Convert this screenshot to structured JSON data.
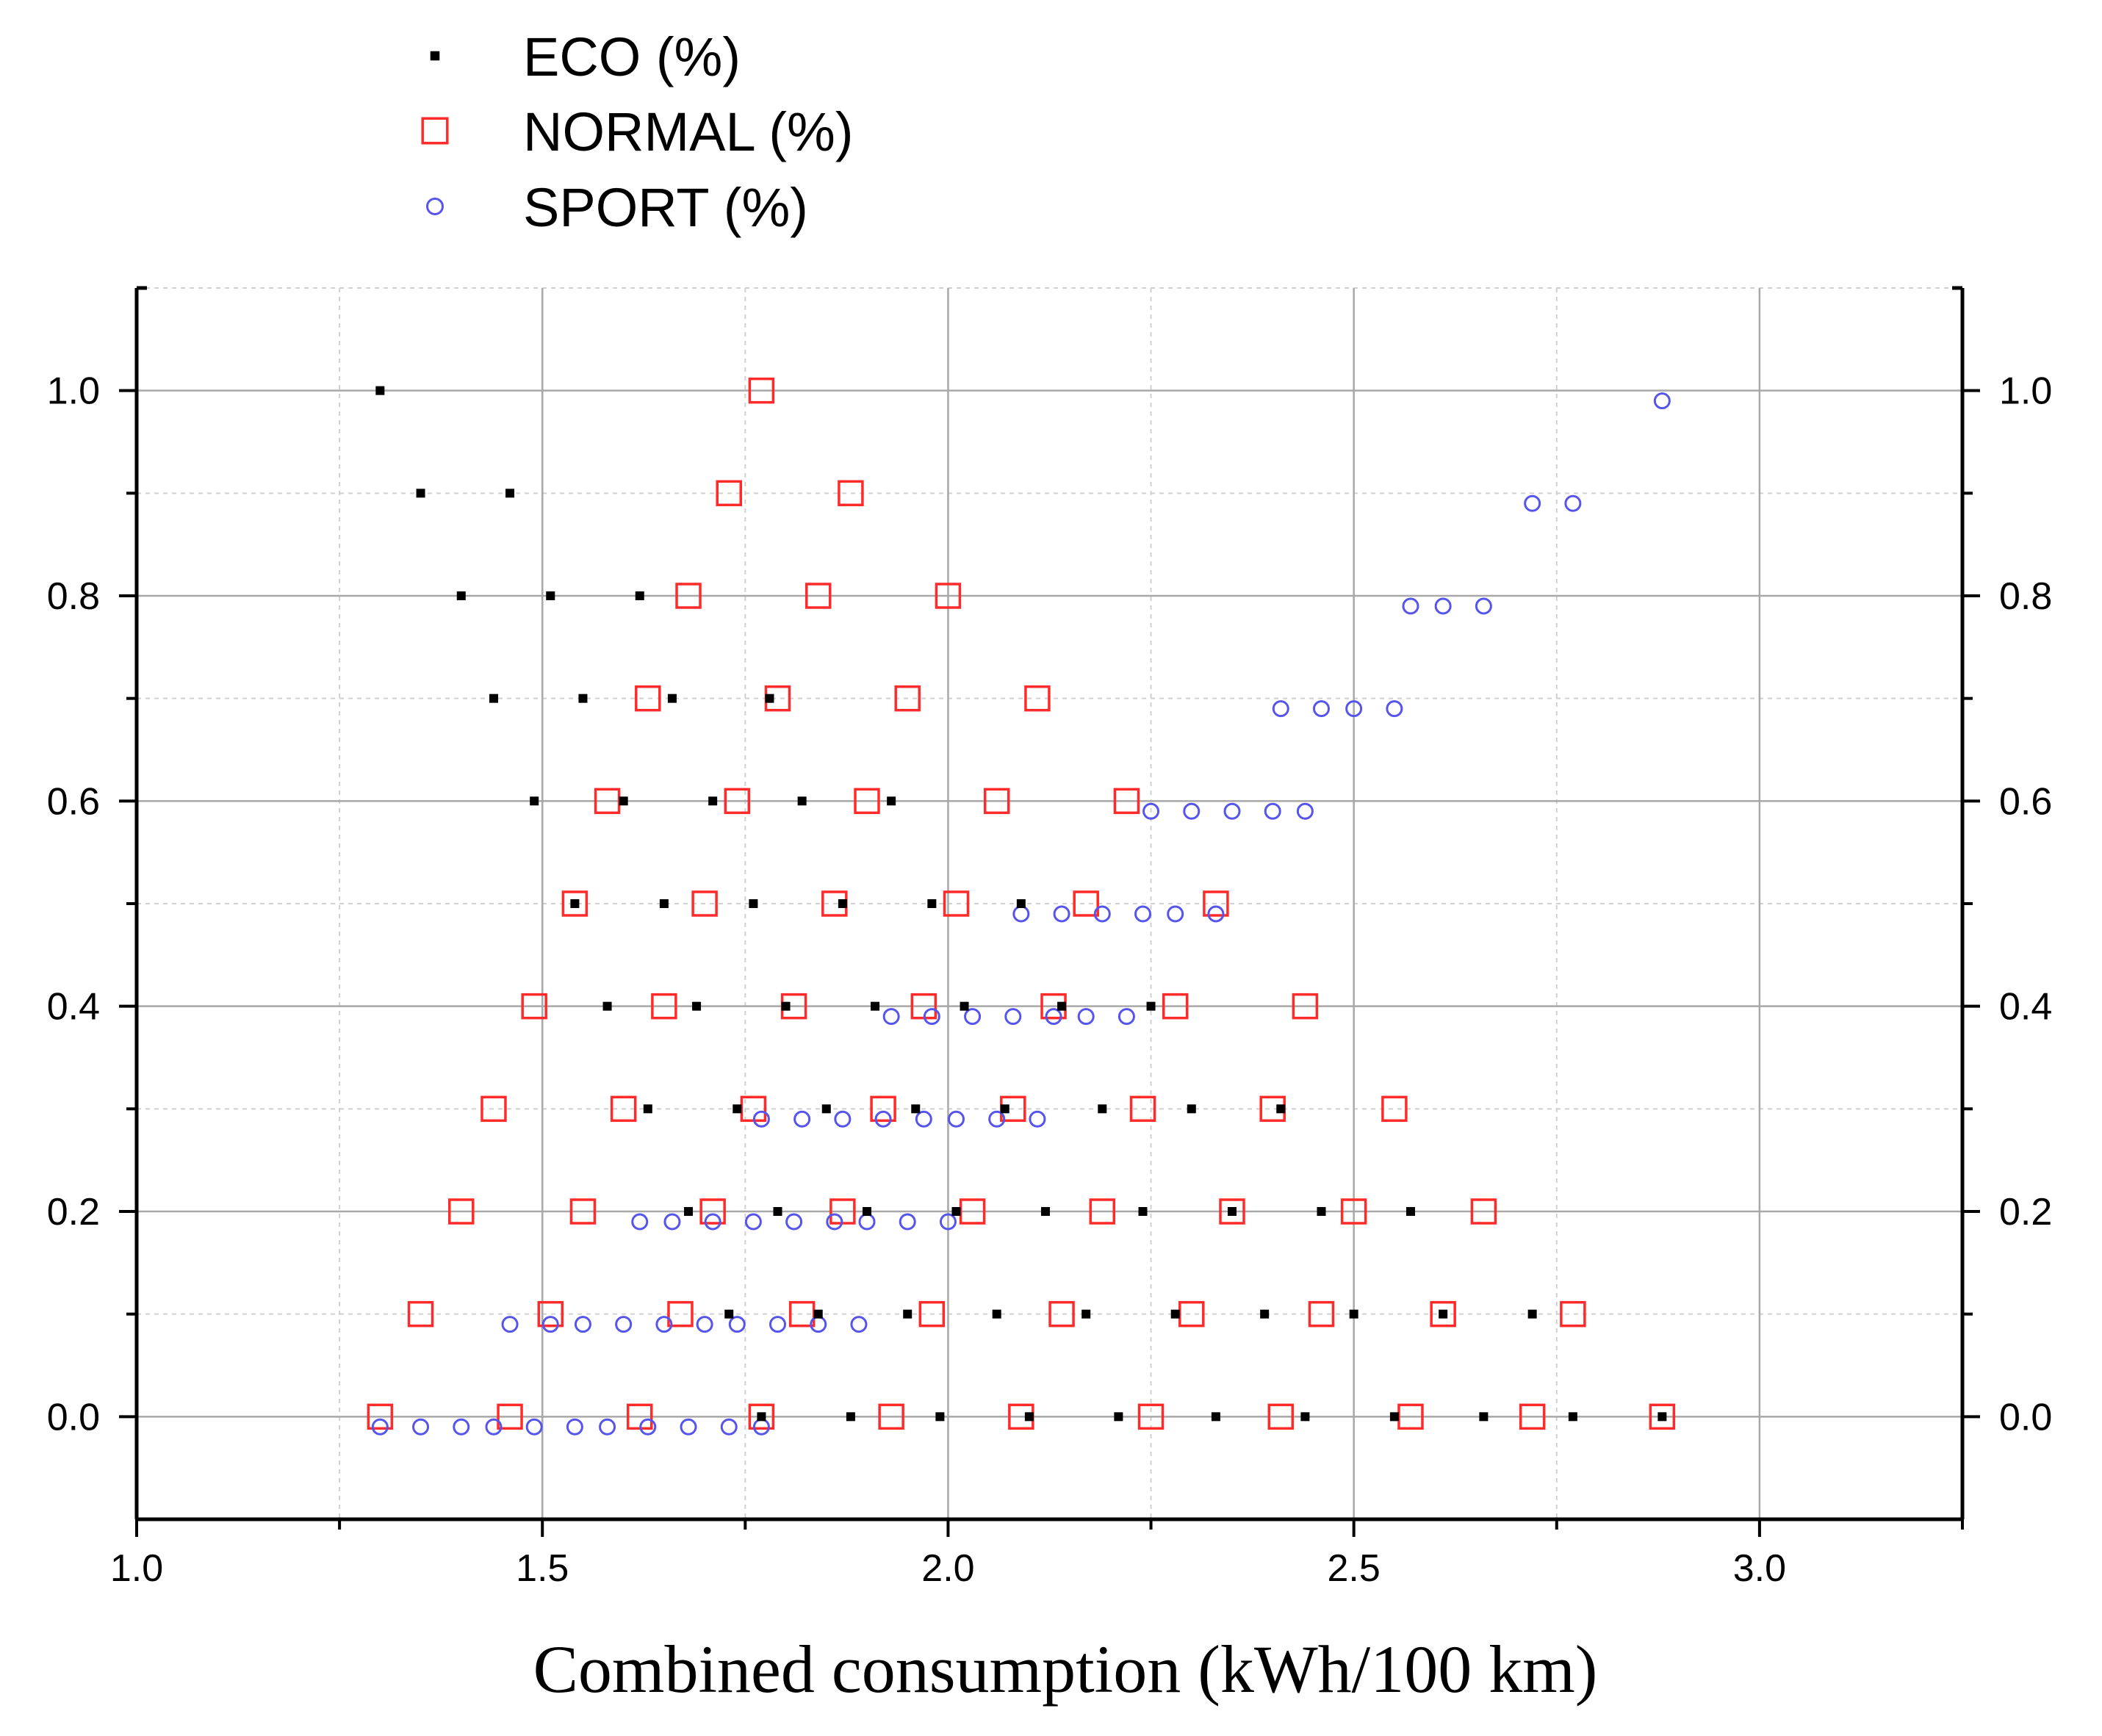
{
  "chart_data": {
    "type": "scatter",
    "title": "",
    "xlabel": "Combined consumption (kWh/100 km)",
    "ylabel": "",
    "xlim": [
      1.0,
      3.25
    ],
    "ylim": [
      -0.1,
      1.1
    ],
    "x_ticks": [
      "1.0",
      "1.5",
      "2.0",
      "2.5",
      "3.0"
    ],
    "y_ticks": [
      "0.0",
      "0.2",
      "0.4",
      "0.6",
      "0.8",
      "1.0"
    ],
    "y_ticks_right": [
      "0.0",
      "0.2",
      "0.4",
      "0.6",
      "0.8",
      "1.0"
    ],
    "grid": true,
    "legend_position": "top-left, above plot",
    "series": [
      {
        "name": "ECO (%)",
        "marker": "filled-square",
        "color": "#000000",
        "points": [
          [
            1.3,
            1.0
          ],
          [
            1.35,
            0.9
          ],
          [
            1.46,
            0.9
          ],
          [
            1.4,
            0.8
          ],
          [
            1.51,
            0.8
          ],
          [
            1.62,
            0.8
          ],
          [
            1.44,
            0.7
          ],
          [
            1.55,
            0.7
          ],
          [
            1.66,
            0.7
          ],
          [
            1.78,
            0.7
          ],
          [
            1.49,
            0.6
          ],
          [
            1.6,
            0.6
          ],
          [
            1.71,
            0.6
          ],
          [
            1.82,
            0.6
          ],
          [
            1.93,
            0.6
          ],
          [
            1.54,
            0.5
          ],
          [
            1.65,
            0.5
          ],
          [
            1.76,
            0.5
          ],
          [
            1.87,
            0.5
          ],
          [
            1.98,
            0.5
          ],
          [
            2.09,
            0.5
          ],
          [
            1.58,
            0.4
          ],
          [
            1.69,
            0.4
          ],
          [
            1.8,
            0.4
          ],
          [
            1.91,
            0.4
          ],
          [
            2.02,
            0.4
          ],
          [
            2.14,
            0.4
          ],
          [
            2.25,
            0.4
          ],
          [
            1.63,
            0.3
          ],
          [
            1.74,
            0.3
          ],
          [
            1.85,
            0.3
          ],
          [
            1.96,
            0.3
          ],
          [
            2.07,
            0.3
          ],
          [
            2.19,
            0.3
          ],
          [
            2.3,
            0.3
          ],
          [
            2.41,
            0.3
          ],
          [
            1.68,
            0.2
          ],
          [
            1.79,
            0.2
          ],
          [
            1.9,
            0.2
          ],
          [
            2.01,
            0.2
          ],
          [
            2.12,
            0.2
          ],
          [
            2.24,
            0.2
          ],
          [
            2.35,
            0.2
          ],
          [
            2.46,
            0.2
          ],
          [
            2.57,
            0.2
          ],
          [
            1.73,
            0.1
          ],
          [
            1.84,
            0.1
          ],
          [
            1.95,
            0.1
          ],
          [
            2.06,
            0.1
          ],
          [
            2.17,
            0.1
          ],
          [
            2.28,
            0.1
          ],
          [
            2.39,
            0.1
          ],
          [
            2.5,
            0.1
          ],
          [
            2.61,
            0.1
          ],
          [
            2.72,
            0.1
          ],
          [
            1.77,
            0.0
          ],
          [
            1.88,
            0.0
          ],
          [
            1.99,
            0.0
          ],
          [
            2.1,
            0.0
          ],
          [
            2.21,
            0.0
          ],
          [
            2.33,
            0.0
          ],
          [
            2.44,
            0.0
          ],
          [
            2.55,
            0.0
          ],
          [
            2.66,
            0.0
          ],
          [
            2.77,
            0.0
          ],
          [
            2.88,
            0.0
          ]
        ]
      },
      {
        "name": "NORMAL (%)",
        "marker": "open-square",
        "color": "#ff2a2a",
        "points": [
          [
            1.77,
            1.0
          ],
          [
            1.73,
            0.9
          ],
          [
            1.88,
            0.9
          ],
          [
            1.68,
            0.8
          ],
          [
            1.84,
            0.8
          ],
          [
            2.0,
            0.8
          ],
          [
            1.63,
            0.7
          ],
          [
            1.79,
            0.7
          ],
          [
            1.95,
            0.7
          ],
          [
            2.11,
            0.7
          ],
          [
            1.58,
            0.6
          ],
          [
            1.74,
            0.6
          ],
          [
            1.9,
            0.6
          ],
          [
            2.06,
            0.6
          ],
          [
            2.22,
            0.6
          ],
          [
            1.54,
            0.5
          ],
          [
            1.7,
            0.5
          ],
          [
            1.86,
            0.5
          ],
          [
            2.01,
            0.5
          ],
          [
            2.17,
            0.5
          ],
          [
            2.33,
            0.5
          ],
          [
            1.49,
            0.4
          ],
          [
            1.65,
            0.4
          ],
          [
            1.81,
            0.4
          ],
          [
            1.97,
            0.4
          ],
          [
            2.13,
            0.4
          ],
          [
            2.28,
            0.4
          ],
          [
            2.44,
            0.4
          ],
          [
            1.44,
            0.3
          ],
          [
            1.6,
            0.3
          ],
          [
            1.76,
            0.3
          ],
          [
            1.92,
            0.3
          ],
          [
            2.08,
            0.3
          ],
          [
            2.24,
            0.3
          ],
          [
            2.4,
            0.3
          ],
          [
            2.55,
            0.3
          ],
          [
            1.4,
            0.2
          ],
          [
            1.55,
            0.2
          ],
          [
            1.71,
            0.2
          ],
          [
            1.87,
            0.2
          ],
          [
            2.03,
            0.2
          ],
          [
            2.19,
            0.2
          ],
          [
            2.35,
            0.2
          ],
          [
            2.5,
            0.2
          ],
          [
            2.66,
            0.2
          ],
          [
            1.35,
            0.1
          ],
          [
            1.51,
            0.1
          ],
          [
            1.67,
            0.1
          ],
          [
            1.82,
            0.1
          ],
          [
            1.98,
            0.1
          ],
          [
            2.14,
            0.1
          ],
          [
            2.3,
            0.1
          ],
          [
            2.46,
            0.1
          ],
          [
            2.61,
            0.1
          ],
          [
            2.77,
            0.1
          ],
          [
            1.3,
            0.0
          ],
          [
            1.46,
            0.0
          ],
          [
            1.62,
            0.0
          ],
          [
            1.77,
            0.0
          ],
          [
            1.93,
            0.0
          ],
          [
            2.09,
            0.0
          ],
          [
            2.25,
            0.0
          ],
          [
            2.41,
            0.0
          ],
          [
            2.57,
            0.0
          ],
          [
            2.72,
            0.0
          ],
          [
            2.88,
            0.0
          ]
        ]
      },
      {
        "name": "SPORT (%)",
        "marker": "open-circle",
        "color": "#5555ee",
        "points": [
          [
            2.88,
            0.99
          ],
          [
            2.72,
            0.89
          ],
          [
            2.77,
            0.89
          ],
          [
            2.57,
            0.79
          ],
          [
            2.61,
            0.79
          ],
          [
            2.66,
            0.79
          ],
          [
            2.41,
            0.69
          ],
          [
            2.46,
            0.69
          ],
          [
            2.5,
            0.69
          ],
          [
            2.55,
            0.69
          ],
          [
            2.25,
            0.59
          ],
          [
            2.3,
            0.59
          ],
          [
            2.35,
            0.59
          ],
          [
            2.4,
            0.59
          ],
          [
            2.44,
            0.59
          ],
          [
            2.09,
            0.49
          ],
          [
            2.14,
            0.49
          ],
          [
            2.19,
            0.49
          ],
          [
            2.24,
            0.49
          ],
          [
            2.28,
            0.49
          ],
          [
            2.33,
            0.49
          ],
          [
            1.93,
            0.39
          ],
          [
            1.98,
            0.39
          ],
          [
            2.03,
            0.39
          ],
          [
            2.08,
            0.39
          ],
          [
            2.13,
            0.39
          ],
          [
            2.17,
            0.39
          ],
          [
            2.22,
            0.39
          ],
          [
            1.77,
            0.29
          ],
          [
            1.82,
            0.29
          ],
          [
            1.87,
            0.29
          ],
          [
            1.92,
            0.29
          ],
          [
            1.97,
            0.29
          ],
          [
            2.01,
            0.29
          ],
          [
            2.06,
            0.29
          ],
          [
            2.11,
            0.29
          ],
          [
            1.62,
            0.19
          ],
          [
            1.66,
            0.19
          ],
          [
            1.71,
            0.19
          ],
          [
            1.76,
            0.19
          ],
          [
            1.81,
            0.19
          ],
          [
            1.86,
            0.19
          ],
          [
            1.9,
            0.19
          ],
          [
            1.95,
            0.19
          ],
          [
            2.0,
            0.19
          ],
          [
            1.46,
            0.09
          ],
          [
            1.51,
            0.09
          ],
          [
            1.55,
            0.09
          ],
          [
            1.6,
            0.09
          ],
          [
            1.65,
            0.09
          ],
          [
            1.7,
            0.09
          ],
          [
            1.74,
            0.09
          ],
          [
            1.79,
            0.09
          ],
          [
            1.84,
            0.09
          ],
          [
            1.89,
            0.09
          ],
          [
            1.3,
            -0.01
          ],
          [
            1.35,
            -0.01
          ],
          [
            1.4,
            -0.01
          ],
          [
            1.44,
            -0.01
          ],
          [
            1.49,
            -0.01
          ],
          [
            1.54,
            -0.01
          ],
          [
            1.58,
            -0.01
          ],
          [
            1.63,
            -0.01
          ],
          [
            1.68,
            -0.01
          ],
          [
            1.73,
            -0.01
          ],
          [
            1.77,
            -0.01
          ]
        ]
      }
    ]
  }
}
